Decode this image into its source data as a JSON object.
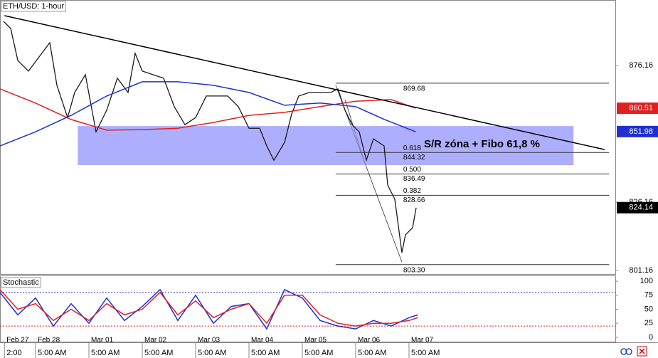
{
  "chart_data": [
    {
      "type": "line",
      "title": "ETH/USD: 1-hour",
      "annotation": "S/R zóna + Fibo 61,8 %",
      "xlim": [
        0,
        276.8
      ],
      "ylim": [
        799.86,
        900.12
      ],
      "yticks": [
        876.16,
        826.16,
        801.16
      ],
      "xticks": [
        {
          "value": 2,
          "label": "2:00"
        },
        {
          "value": 16,
          "label": "5:00 AM"
        },
        {
          "value": 40,
          "label": "5:00 AM"
        },
        {
          "value": 64,
          "label": "5:00 AM"
        },
        {
          "value": 88,
          "label": "5:00 AM"
        },
        {
          "value": 112,
          "label": "5:00 AM"
        },
        {
          "value": 136,
          "label": "5:00 AM"
        },
        {
          "value": 160,
          "label": "5:00 AM"
        },
        {
          "value": 184,
          "label": "5:00 AM"
        }
      ],
      "date_labels": [
        {
          "value": 2,
          "label": "Feb 27"
        },
        {
          "value": 16,
          "label": "Feb 28"
        },
        {
          "value": 40,
          "label": "Mar 01"
        },
        {
          "value": 64,
          "label": "Mar 02"
        },
        {
          "value": 88,
          "label": "Mar 03"
        },
        {
          "value": 112,
          "label": "Mar 04"
        },
        {
          "value": 136,
          "label": "Mar 05"
        },
        {
          "value": 160,
          "label": "Mar 06"
        },
        {
          "value": 184,
          "label": "Mar 07"
        }
      ],
      "series": [
        {
          "color": "#1a1a1a",
          "x": [
            1.6,
            4.8,
            8,
            12.8,
            17.6,
            22.4,
            25.6,
            30.4,
            33.6,
            38.4,
            43.2,
            48,
            52.8,
            57.6,
            60.8,
            64,
            68.8,
            73.6,
            78.4,
            83.2,
            88,
            92.8,
            97.6,
            102.4,
            107.2,
            112,
            116.8,
            120,
            123.2,
            128,
            131.2,
            134.4,
            139.2,
            144,
            148.8,
            152,
            155.2,
            158.4,
            161.6,
            164.8,
            168,
            172.8,
            174.4,
            177.6,
            180.8,
            182.4,
            185.6,
            187.2
          ],
          "values": [
            892.3,
            889.7,
            878.0,
            874.1,
            879.3,
            884.5,
            868.9,
            857.1,
            866.3,
            872.8,
            851.9,
            859.8,
            871.5,
            866.3,
            880.6,
            874.1,
            872.8,
            871.5,
            861.1,
            854.5,
            857.1,
            865.0,
            865.0,
            865.0,
            861.1,
            853.2,
            853.2,
            846.7,
            841.5,
            848.0,
            858.4,
            865.0,
            866.3,
            866.3,
            866.3,
            867.6,
            859.8,
            854.5,
            851.9,
            841.5,
            849.3,
            846.7,
            832.4,
            827.2,
            807.7,
            814.2,
            816.8,
            824.1
          ]
        },
        {
          "color": "#e02020",
          "x": [
            0,
            16,
            32,
            48,
            64,
            80,
            96,
            112,
            128,
            144,
            160,
            176,
            187
          ],
          "values": [
            867.6,
            862.4,
            856.4,
            852.5,
            852.7,
            853.2,
            855.3,
            857.9,
            859.0,
            861.1,
            863.1,
            863.7,
            860.5
          ]
        },
        {
          "color": "#2030d0",
          "x": [
            0,
            16,
            32,
            48,
            64,
            80,
            96,
            112,
            128,
            144,
            160,
            173,
            187
          ],
          "values": [
            846.7,
            851.9,
            857.9,
            865.0,
            870.2,
            870.2,
            868.9,
            866.3,
            861.6,
            862.4,
            861.1,
            856.4,
            851.9
          ]
        }
      ],
      "trendline": {
        "x": [
          2,
          272
        ],
        "values": [
          894.4,
          845.4
        ],
        "color": "#000000"
      },
      "zone": {
        "x": [
          35,
          258
        ],
        "values": [
          854.0,
          839.7
        ],
        "color": "#8c8cff"
      },
      "fib": {
        "x": [
          151,
          274
        ],
        "levels": [
          {
            "price": 869.68
          },
          {
            "ratio": 0.618,
            "price": 844.32
          },
          {
            "ratio": {
              "value": 0.5,
              "label": "0.500"
            },
            "price": 836.49
          },
          {
            "ratio": 0.382,
            "price": 828.66
          },
          {
            "price": {
              "value": 803.3,
              "label": "803.30"
            }
          }
        ]
      },
      "price_labels": [
        {
          "value": 860.51,
          "color": "#e02020"
        },
        {
          "value": 851.98,
          "color": "#2030d0"
        },
        {
          "value": 824.14,
          "color": "#000000"
        }
      ]
    },
    {
      "type": "line",
      "title": "Stochastic",
      "xlim": [
        0,
        276.8
      ],
      "ylim": [
        -9,
        109
      ],
      "yticks": [
        100,
        75,
        50,
        25,
        0
      ],
      "bands": [
        {
          "value": 80,
          "color": "#3030c0"
        },
        {
          "value": 20,
          "color": "#e02020"
        }
      ],
      "series": [
        {
          "color": "#2030d0",
          "x": [
            0,
            8,
            16,
            24,
            32,
            40,
            48,
            56,
            64,
            72,
            80,
            88,
            96,
            104,
            112,
            120,
            128,
            136,
            144,
            152,
            160,
            168,
            176,
            184,
            188
          ],
          "values": [
            80,
            40,
            70,
            20,
            60,
            25,
            70,
            30,
            55,
            85,
            30,
            75,
            25,
            55,
            60,
            15,
            85,
            70,
            30,
            20,
            15,
            30,
            20,
            35,
            40
          ]
        },
        {
          "color": "#e02020",
          "x": [
            0,
            8,
            16,
            24,
            32,
            40,
            48,
            56,
            64,
            72,
            80,
            88,
            96,
            104,
            112,
            120,
            128,
            136,
            144,
            152,
            160,
            168,
            176,
            184,
            188
          ],
          "values": [
            85,
            50,
            60,
            30,
            50,
            30,
            60,
            40,
            50,
            80,
            40,
            65,
            35,
            50,
            60,
            25,
            75,
            75,
            40,
            25,
            20,
            25,
            25,
            30,
            35
          ]
        }
      ]
    }
  ]
}
